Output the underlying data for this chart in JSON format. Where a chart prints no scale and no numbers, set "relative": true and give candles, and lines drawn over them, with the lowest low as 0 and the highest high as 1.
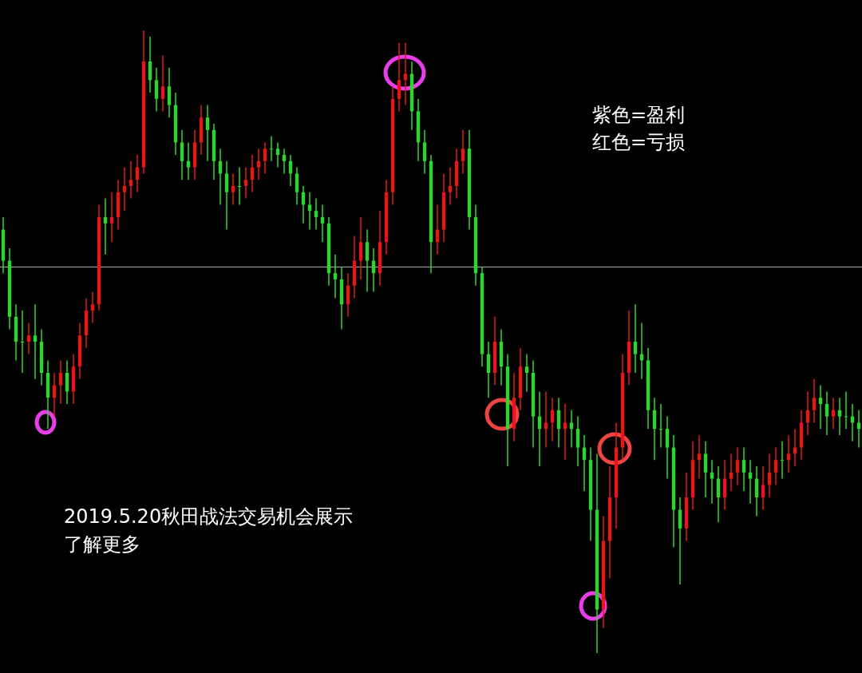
{
  "chart_data": {
    "type": "candlestick",
    "relative": true,
    "categories": [
      null,
      null,
      null,
      null,
      null,
      null,
      null,
      null,
      null,
      null,
      null,
      null,
      null,
      null,
      null,
      null,
      null,
      null,
      null,
      null,
      null,
      null,
      null,
      null,
      null,
      null,
      null,
      null,
      null,
      null,
      null,
      null,
      null,
      null,
      null,
      null,
      null,
      null,
      null,
      null,
      null,
      null,
      null,
      null,
      null,
      null,
      null,
      null,
      null,
      null,
      null,
      null,
      null,
      null,
      null,
      null,
      null,
      null,
      null,
      null,
      null,
      null,
      null,
      null,
      null,
      null,
      null,
      null,
      null,
      null,
      null,
      null,
      null,
      null,
      null,
      null,
      null,
      null,
      null,
      null,
      null,
      null,
      null,
      null,
      null,
      null,
      null,
      null,
      null,
      null,
      null,
      null,
      null,
      null,
      null,
      null,
      null,
      null,
      null,
      null,
      null,
      null,
      null,
      null,
      null,
      null,
      null,
      null,
      null,
      null,
      null,
      null,
      null,
      null,
      null,
      null,
      null,
      null,
      null,
      null,
      null,
      null,
      null,
      null,
      null,
      null,
      null,
      null,
      null,
      null,
      null,
      null,
      null,
      null,
      null
    ],
    "colors": [
      "#2fd62a",
      "#2fd62a",
      "#2fd62a",
      "#2fd62a",
      "#e8141b",
      "#2fd62a",
      "#2fd62a",
      "#2fd62a",
      "#e8141b",
      "#e8141b",
      "#2fd62a",
      "#e8141b",
      "#e8141b",
      "#e8141b",
      "#e8141b",
      "#e8141b",
      "#2fd62a",
      "#e8141b",
      "#e8141b",
      "#e8141b",
      "#e8141b",
      "#e8141b",
      "#e8141b",
      "#2fd62a",
      "#2fd62a",
      "#e8141b",
      "#2fd62a",
      "#2fd62a",
      "#2fd62a",
      "#2fd62a",
      "#e8141b",
      "#e8141b",
      "#2fd62a",
      "#2fd62a",
      "#2fd62a",
      "#2fd62a",
      "#e8141b",
      "#2fd62a",
      "#e8141b",
      "#e8141b",
      "#e8141b",
      "#e8141b",
      "#2fd62a",
      "#2fd62a",
      "#2fd62a",
      "#2fd62a",
      "#2fd62a",
      "#2fd62a",
      "#2fd62a",
      "#2fd62a",
      "#2fd62a",
      "#2fd62a",
      "#2fd62a",
      "#2fd62a",
      "#e8141b",
      "#e8141b",
      "#e8141b",
      "#2fd62a",
      "#2fd62a",
      "#e8141b",
      "#e8141b",
      "#e8141b",
      "#e8141b",
      "#e8141b",
      "#2fd62a",
      "#2fd62a",
      "#2fd62a",
      "#2fd62a",
      "#e8141b",
      "#e8141b",
      "#e8141b",
      "#e8141b",
      "#e8141b",
      "#2fd62a",
      "#2fd62a",
      "#2fd62a",
      "#2fd62a",
      "#e8141b",
      "#2fd62a",
      "#2fd62a",
      "#e8141b",
      "#e8141b",
      "#2fd62a",
      "#2fd62a",
      "#2fd62a",
      "#e8141b",
      "#e8141b",
      "#2fd62a",
      "#e8141b",
      "#2fd62a",
      "#2fd62a",
      "#2fd62a",
      "#2fd62a",
      "#2fd62a",
      "#e8141b",
      "#e8141b",
      "#e8141b",
      "#e8141b",
      "#e8141b",
      "#2fd62a",
      "#2fd62a",
      "#2fd62a",
      "#2fd62a",
      "#2fd62a",
      "#2fd62a",
      "#2fd62a",
      "#2fd62a",
      "#e8141b",
      "#e8141b",
      "#e8141b",
      "#2fd62a",
      "#2fd62a",
      "#2fd62a",
      "#e8141b",
      "#e8141b",
      "#e8141b",
      "#2fd62a",
      "#2fd62a",
      "#2fd62a",
      "#e8141b",
      "#e8141b",
      "#e8141b",
      "#2fd62a",
      "#e8141b",
      "#e8141b",
      "#e8141b",
      "#e8141b",
      "#e8141b",
      "#2fd62a",
      "#2fd62a",
      "#e8141b",
      "#2fd62a",
      "#2fd62a",
      "#2fd62a",
      "#2fd62a"
    ],
    "ohlc": [
      [
        0.68,
        0.7,
        0.61,
        0.63
      ],
      [
        0.63,
        0.65,
        0.52,
        0.54
      ],
      [
        0.54,
        0.56,
        0.47,
        0.5
      ],
      [
        0.5,
        0.55,
        0.45,
        0.5
      ],
      [
        0.5,
        0.53,
        0.48,
        0.51
      ],
      [
        0.51,
        0.56,
        0.44,
        0.5
      ],
      [
        0.5,
        0.52,
        0.43,
        0.45
      ],
      [
        0.45,
        0.47,
        0.36,
        0.41
      ],
      [
        0.41,
        0.45,
        0.38,
        0.43
      ],
      [
        0.43,
        0.47,
        0.4,
        0.45
      ],
      [
        0.45,
        0.47,
        0.4,
        0.42
      ],
      [
        0.42,
        0.48,
        0.4,
        0.46
      ],
      [
        0.46,
        0.53,
        0.44,
        0.51
      ],
      [
        0.51,
        0.57,
        0.49,
        0.55
      ],
      [
        0.55,
        0.58,
        0.53,
        0.56
      ],
      [
        0.56,
        0.72,
        0.55,
        0.7
      ],
      [
        0.7,
        0.73,
        0.64,
        0.69
      ],
      [
        0.69,
        0.74,
        0.66,
        0.7
      ],
      [
        0.7,
        0.76,
        0.68,
        0.74
      ],
      [
        0.74,
        0.78,
        0.71,
        0.75
      ],
      [
        0.75,
        0.79,
        0.73,
        0.76
      ],
      [
        0.76,
        0.8,
        0.74,
        0.78
      ],
      [
        0.78,
        1.0,
        0.77,
        0.95
      ],
      [
        0.95,
        0.99,
        0.9,
        0.92
      ],
      [
        0.92,
        0.94,
        0.87,
        0.89
      ],
      [
        0.89,
        0.96,
        0.87,
        0.91
      ],
      [
        0.91,
        0.94,
        0.86,
        0.88
      ],
      [
        0.88,
        0.9,
        0.8,
        0.82
      ],
      [
        0.82,
        0.84,
        0.76,
        0.79
      ],
      [
        0.79,
        0.82,
        0.76,
        0.78
      ],
      [
        0.78,
        0.84,
        0.76,
        0.82
      ],
      [
        0.82,
        0.88,
        0.8,
        0.86
      ],
      [
        0.86,
        0.88,
        0.79,
        0.84
      ],
      [
        0.84,
        0.85,
        0.76,
        0.79
      ],
      [
        0.79,
        0.81,
        0.72,
        0.77
      ],
      [
        0.77,
        0.79,
        0.68,
        0.74
      ],
      [
        0.74,
        0.77,
        0.72,
        0.75
      ],
      [
        0.75,
        0.78,
        0.72,
        0.75
      ],
      [
        0.75,
        0.78,
        0.73,
        0.76
      ],
      [
        0.76,
        0.8,
        0.74,
        0.78
      ],
      [
        0.78,
        0.81,
        0.76,
        0.79
      ],
      [
        0.79,
        0.82,
        0.77,
        0.81
      ],
      [
        0.81,
        0.83,
        0.79,
        0.81
      ],
      [
        0.81,
        0.82,
        0.78,
        0.8
      ],
      [
        0.8,
        0.81,
        0.77,
        0.79
      ],
      [
        0.79,
        0.8,
        0.75,
        0.77
      ],
      [
        0.77,
        0.78,
        0.72,
        0.74
      ],
      [
        0.74,
        0.75,
        0.69,
        0.72
      ],
      [
        0.72,
        0.74,
        0.68,
        0.71
      ],
      [
        0.71,
        0.73,
        0.68,
        0.7
      ],
      [
        0.7,
        0.72,
        0.66,
        0.69
      ],
      [
        0.69,
        0.7,
        0.59,
        0.61
      ],
      [
        0.61,
        0.64,
        0.57,
        0.6
      ],
      [
        0.6,
        0.62,
        0.52,
        0.56
      ],
      [
        0.56,
        0.61,
        0.54,
        0.59
      ],
      [
        0.59,
        0.67,
        0.57,
        0.63
      ],
      [
        0.63,
        0.7,
        0.6,
        0.66
      ],
      [
        0.66,
        0.68,
        0.58,
        0.63
      ],
      [
        0.63,
        0.65,
        0.58,
        0.61
      ],
      [
        0.61,
        0.71,
        0.59,
        0.66
      ],
      [
        0.66,
        0.76,
        0.64,
        0.74
      ],
      [
        0.74,
        0.91,
        0.72,
        0.89
      ],
      [
        0.89,
        0.98,
        0.87,
        0.92
      ],
      [
        0.92,
        0.98,
        0.88,
        0.93
      ],
      [
        0.93,
        0.95,
        0.84,
        0.87
      ],
      [
        0.87,
        0.89,
        0.79,
        0.82
      ],
      [
        0.82,
        0.84,
        0.77,
        0.79
      ],
      [
        0.79,
        0.8,
        0.61,
        0.66
      ],
      [
        0.66,
        0.72,
        0.64,
        0.68
      ],
      [
        0.68,
        0.77,
        0.66,
        0.74
      ],
      [
        0.74,
        0.78,
        0.72,
        0.75
      ],
      [
        0.75,
        0.81,
        0.73,
        0.79
      ],
      [
        0.79,
        0.84,
        0.77,
        0.81
      ],
      [
        0.81,
        0.84,
        0.68,
        0.7
      ],
      [
        0.7,
        0.72,
        0.59,
        0.61
      ],
      [
        0.61,
        0.62,
        0.46,
        0.48
      ],
      [
        0.48,
        0.5,
        0.41,
        0.45
      ],
      [
        0.45,
        0.54,
        0.43,
        0.5
      ],
      [
        0.5,
        0.52,
        0.43,
        0.46
      ],
      [
        0.46,
        0.48,
        0.3,
        0.36
      ],
      [
        0.36,
        0.45,
        0.34,
        0.41
      ],
      [
        0.41,
        0.49,
        0.39,
        0.46
      ],
      [
        0.46,
        0.48,
        0.42,
        0.45
      ],
      [
        0.45,
        0.47,
        0.33,
        0.38
      ],
      [
        0.38,
        0.42,
        0.3,
        0.36
      ],
      [
        0.36,
        0.42,
        0.33,
        0.37
      ],
      [
        0.37,
        0.41,
        0.34,
        0.39
      ],
      [
        0.39,
        0.41,
        0.33,
        0.36
      ],
      [
        0.36,
        0.4,
        0.31,
        0.37
      ],
      [
        0.37,
        0.39,
        0.33,
        0.36
      ],
      [
        0.36,
        0.38,
        0.3,
        0.33
      ],
      [
        0.33,
        0.35,
        0.26,
        0.31
      ],
      [
        0.31,
        0.33,
        0.18,
        0.23
      ],
      [
        0.23,
        0.32,
        0.0,
        0.07
      ],
      [
        0.07,
        0.22,
        0.04,
        0.18
      ],
      [
        0.18,
        0.3,
        0.12,
        0.25
      ],
      [
        0.25,
        0.37,
        0.2,
        0.33
      ],
      [
        0.33,
        0.48,
        0.31,
        0.45
      ],
      [
        0.45,
        0.55,
        0.43,
        0.5
      ],
      [
        0.5,
        0.56,
        0.45,
        0.48
      ],
      [
        0.48,
        0.53,
        0.44,
        0.47
      ],
      [
        0.47,
        0.49,
        0.36,
        0.39
      ],
      [
        0.39,
        0.41,
        0.31,
        0.36
      ],
      [
        0.36,
        0.4,
        0.33,
        0.36
      ],
      [
        0.36,
        0.38,
        0.28,
        0.33
      ],
      [
        0.33,
        0.35,
        0.17,
        0.23
      ],
      [
        0.23,
        0.25,
        0.11,
        0.2
      ],
      [
        0.2,
        0.29,
        0.18,
        0.25
      ],
      [
        0.25,
        0.34,
        0.23,
        0.31
      ],
      [
        0.31,
        0.35,
        0.28,
        0.32
      ],
      [
        0.32,
        0.34,
        0.25,
        0.29
      ],
      [
        0.29,
        0.31,
        0.24,
        0.28
      ],
      [
        0.28,
        0.3,
        0.21,
        0.25
      ],
      [
        0.25,
        0.31,
        0.23,
        0.28
      ],
      [
        0.28,
        0.32,
        0.26,
        0.29
      ],
      [
        0.29,
        0.33,
        0.27,
        0.31
      ],
      [
        0.31,
        0.33,
        0.26,
        0.29
      ],
      [
        0.29,
        0.31,
        0.24,
        0.28
      ],
      [
        0.28,
        0.3,
        0.22,
        0.25
      ],
      [
        0.25,
        0.3,
        0.23,
        0.27
      ],
      [
        0.27,
        0.32,
        0.25,
        0.29
      ],
      [
        0.29,
        0.33,
        0.27,
        0.31
      ],
      [
        0.31,
        0.34,
        0.28,
        0.31
      ],
      [
        0.31,
        0.35,
        0.29,
        0.32
      ],
      [
        0.32,
        0.36,
        0.3,
        0.33
      ],
      [
        0.33,
        0.39,
        0.31,
        0.37
      ],
      [
        0.37,
        0.42,
        0.35,
        0.39
      ],
      [
        0.39,
        0.44,
        0.37,
        0.41
      ],
      [
        0.41,
        0.43,
        0.36,
        0.4
      ],
      [
        0.4,
        0.42,
        0.35,
        0.38
      ],
      [
        0.38,
        0.41,
        0.36,
        0.39
      ],
      [
        0.39,
        0.41,
        0.35,
        0.38
      ],
      [
        0.38,
        0.42,
        0.36,
        0.38
      ],
      [
        0.38,
        0.4,
        0.34,
        0.37
      ],
      [
        0.37,
        0.39,
        0.33,
        0.36
      ]
    ],
    "ref_lines": [
      {
        "axis": "y",
        "value": 0.62,
        "color": "#b4b4b4"
      }
    ],
    "annotations": [
      "紫色=盈利",
      "红色=亏损",
      "2019.5.20秋田战法交易机会展示",
      "了解更多"
    ]
  }
}
